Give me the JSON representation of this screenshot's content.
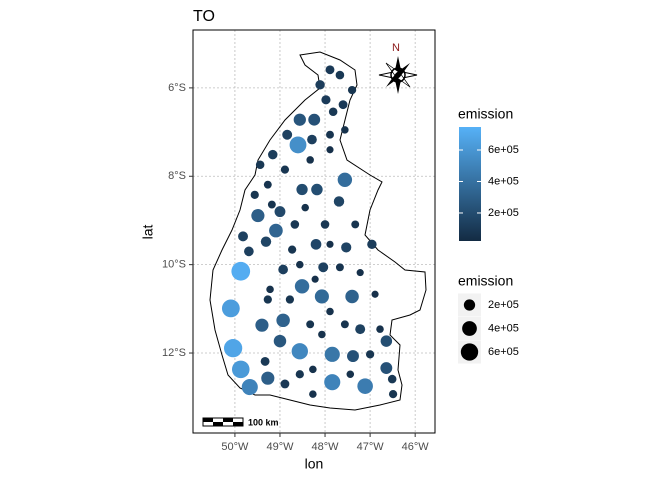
{
  "chart_data": {
    "type": "scatter",
    "title": "TO",
    "x_label": "lon",
    "y_label": "lat",
    "xlim": [
      -50.93,
      -45.56
    ],
    "ylim": [
      -13.81,
      -4.69
    ],
    "xticks": [
      {
        "value": -50,
        "label": "50°W"
      },
      {
        "value": -49,
        "label": "49°W"
      },
      {
        "value": -48,
        "label": "48°W"
      },
      {
        "value": -47,
        "label": "47°W"
      },
      {
        "value": -46,
        "label": "46°W"
      }
    ],
    "yticks": [
      {
        "value": -6,
        "label": "6°S"
      },
      {
        "value": -8,
        "label": "8°S"
      },
      {
        "value": -10,
        "label": "10°S"
      },
      {
        "value": -12,
        "label": "12°S"
      }
    ],
    "grid": true,
    "x": [
      -49.87,
      -50.09,
      -50.04,
      -49.87,
      -49.67,
      -48.6,
      -48.56,
      -47.84,
      -47.11,
      -47.84,
      -47.56,
      -48.07,
      -48.51,
      -47.4,
      -48.93,
      -49.4,
      -49.49,
      -49.09,
      -49.27,
      -49.0,
      -47.38,
      -46.64,
      -46.64,
      -48.56,
      -48.24,
      -48.18,
      -48.51,
      -49.0,
      -49.31,
      -49.82,
      -49.69,
      -48.2,
      -47.69,
      -47.53,
      -48.04,
      -48.93,
      -46.96,
      -47.22,
      -47.89,
      -47.67,
      -48.11,
      -47.98,
      -47.6,
      -47.82,
      -47.4,
      -48.29,
      -48.84,
      -49.16,
      -49.44,
      -48.89,
      -49.27,
      -49.56,
      -49.18,
      -48.67,
      -48.44,
      -48.73,
      -48.0,
      -47.33,
      -48.56,
      -47.67,
      -49.22,
      -48.78,
      -48.33,
      -47.89,
      -47.56,
      -48.07,
      -48.56,
      -48.89,
      -48.27,
      -47.44,
      -47.0,
      -46.51,
      -46.49,
      -48.27,
      -49.33,
      -49.27,
      -46.78,
      -47.22,
      -46.89,
      -48.22,
      -47.89,
      -48.33,
      -47.89,
      -47.56,
      -47.89
    ],
    "values": [
      -10.15,
      -10.99,
      -11.89,
      -12.37,
      -12.77,
      -7.29,
      -11.96,
      -12.66,
      -12.75,
      -12.03,
      -8.08,
      -10.72,
      -10.49,
      -10.72,
      -11.26,
      -11.37,
      -8.89,
      -9.23,
      -12.57,
      -11.73,
      -12.07,
      -12.34,
      -11.73,
      -6.72,
      -6.72,
      -8.3,
      -8.3,
      -8.8,
      -9.48,
      -9.36,
      -9.7,
      -9.54,
      -8.57,
      -9.61,
      -10.06,
      -10.11,
      -9.54,
      -11.46,
      -5.59,
      -5.71,
      -5.93,
      -6.27,
      -6.38,
      -6.54,
      -6.05,
      -7.17,
      -7.06,
      -7.51,
      -7.74,
      -7.85,
      -8.19,
      -8.42,
      -8.64,
      -9.09,
      -8.71,
      -9.66,
      -9.09,
      -9.09,
      -10.0,
      -10.06,
      -10.56,
      -10.79,
      -11.35,
      -11.06,
      -11.35,
      -11.58,
      -12.48,
      -12.7,
      -12.37,
      -12.48,
      -12.03,
      -12.59,
      -12.93,
      -12.93,
      -12.19,
      -10.79,
      -11.46,
      -10.18,
      -10.67,
      -10.33,
      -9.54,
      -7.63,
      -7.06,
      -6.95,
      -7.4
    ],
    "emission": [
      720000,
      640000,
      680000,
      620000,
      500000,
      560000,
      520000,
      500000,
      460000,
      430000,
      380000,
      360000,
      380000,
      320000,
      320000,
      300000,
      300000,
      330000,
      300000,
      260000,
      230000,
      230000,
      210000,
      250000,
      230000,
      210000,
      200000,
      180000,
      160000,
      140000,
      130000,
      170000,
      160000,
      150000,
      140000,
      130000,
      120000,
      140000,
      100000,
      90000,
      120000,
      110000,
      100000,
      90000,
      80000,
      130000,
      140000,
      120000,
      90000,
      80000,
      70000,
      80000,
      70000,
      90000,
      60000,
      80000,
      90000,
      70000,
      60000,
      70000,
      60000,
      80000,
      70000,
      60000,
      70000,
      60000,
      80000,
      100000,
      60000,
      60000,
      80000,
      90000,
      80000,
      60000,
      100000,
      80000,
      60000,
      50000,
      50000,
      50000,
      50000,
      60000,
      70000,
      60000,
      50000
    ],
    "color_scale": {
      "title": "emission",
      "low": "#132B43",
      "high": "#56B1F7",
      "limits": [
        22000,
        746000
      ],
      "ticks": [
        {
          "value": 200000,
          "label": "2e+05"
        },
        {
          "value": 400000,
          "label": "4e+05"
        },
        {
          "value": 600000,
          "label": "6e+05"
        }
      ]
    },
    "size_legend": {
      "title": "emission",
      "color": "#000000",
      "ticks": [
        {
          "value": 200000,
          "label": "2e+05"
        },
        {
          "value": 400000,
          "label": "4e+05"
        },
        {
          "value": 600000,
          "label": "6e+05"
        }
      ]
    },
    "north_label": "N",
    "scalebar_label": "100 km"
  }
}
